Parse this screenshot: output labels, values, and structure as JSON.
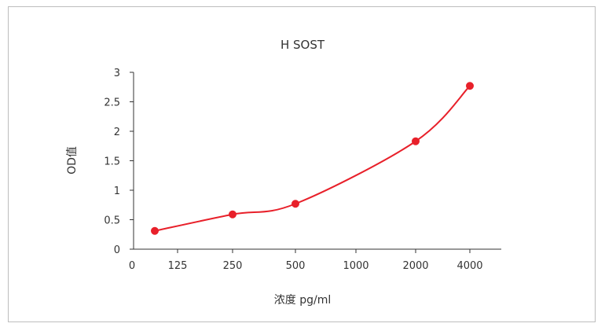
{
  "chart_data": {
    "type": "line",
    "title": "H SOST",
    "xlabel": "浓度 pg/ml",
    "ylabel": "OD值",
    "categories": [
      "0",
      "125",
      "250",
      "500",
      "1000",
      "2000",
      "4000"
    ],
    "x": [
      62.5,
      250,
      500,
      2000,
      4000
    ],
    "values": [
      0.31,
      0.59,
      0.77,
      1.83,
      2.77
    ],
    "ylim": [
      0,
      3
    ],
    "yticks": [
      "0",
      "0.5",
      "1",
      "1.5",
      "2",
      "2.5",
      "3"
    ],
    "grid": false,
    "legend": "none",
    "series_color": "#e8202a"
  }
}
